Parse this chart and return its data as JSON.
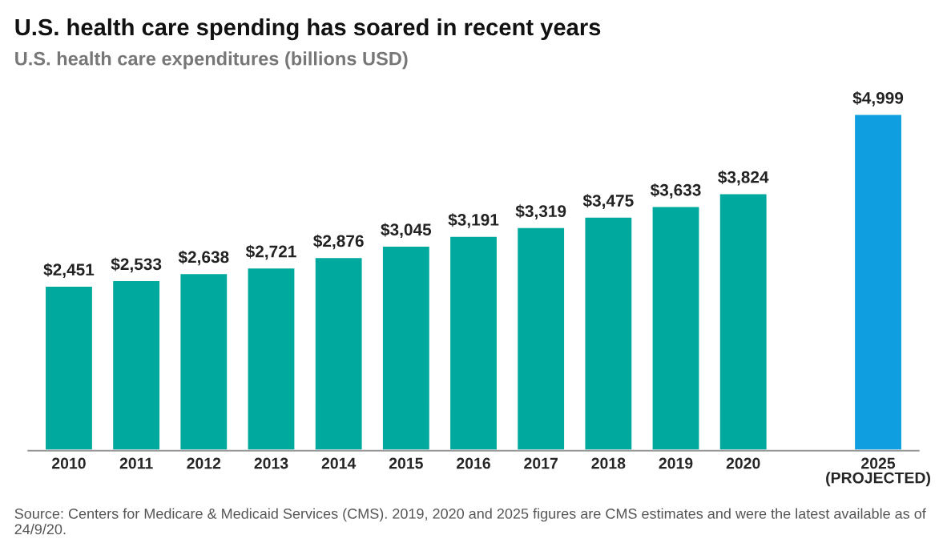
{
  "chart_data": {
    "type": "bar",
    "title": "U.S. health care spending has soared in recent years",
    "subtitle": "U.S. health care expenditures (billions USD)",
    "categories": [
      "2010",
      "2011",
      "2012",
      "2013",
      "2014",
      "2015",
      "2016",
      "2017",
      "2018",
      "2019",
      "2020",
      null,
      "2025\n(PROJECTED)"
    ],
    "values": [
      2451,
      2533,
      2638,
      2721,
      2876,
      3045,
      3191,
      3319,
      3475,
      3633,
      3824,
      null,
      4999
    ],
    "colors": [
      "#00a99d",
      "#00a99d",
      "#00a99d",
      "#00a99d",
      "#00a99d",
      "#00a99d",
      "#00a99d",
      "#00a99d",
      "#00a99d",
      "#00a99d",
      "#00a99d",
      "#00a99d",
      "#0f9ee0"
    ],
    "value_labels": [
      "$2,451",
      "$2,533",
      "$2,638",
      "$2,721",
      "$2,876",
      "$3,045",
      "$3,191",
      "$3,319",
      "$3,475",
      "$3,633",
      "$3,824",
      null,
      "$4,999"
    ],
    "annotations": [
      "Source: Centers for Medicare & Medicaid Services (CMS). 2019, 2020 and 2025 figures are CMS estimates and were the latest available as of 24/9/20."
    ]
  }
}
